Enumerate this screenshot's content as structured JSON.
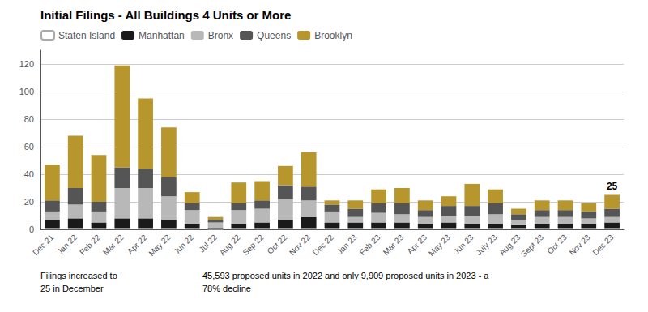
{
  "chart_data": {
    "type": "bar",
    "stacked": true,
    "title": "Initial Filings - All Buildings 4 Units or More",
    "categories": [
      "Dec 21",
      "Jan 22",
      "Feb 22",
      "Mar 22",
      "Apr 22",
      "May 22",
      "Jun 22",
      "Jul 22",
      "Aug 22",
      "Sep 22",
      "Oct 22",
      "Nov 22",
      "Dec 22",
      "Jan 23",
      "Feb 23",
      "Mar 23",
      "Apr 23",
      "May 23",
      "Jun 23",
      "July 23",
      "Aug 23",
      "Sept 23",
      "Oct 23",
      "Nov 23",
      "Dec 23"
    ],
    "series": [
      {
        "name": "Staten Island",
        "color": "#FFFFFF",
        "values": [
          1,
          1,
          1,
          1,
          1,
          1,
          1,
          0,
          1,
          1,
          1,
          1,
          1,
          1,
          1,
          1,
          1,
          1,
          1,
          1,
          1,
          1,
          1,
          1,
          1
        ]
      },
      {
        "name": "Manhattan",
        "color": "#1a1a1a",
        "values": [
          6,
          7,
          4,
          7,
          7,
          6,
          3,
          1,
          3,
          4,
          6,
          8,
          4,
          4,
          4,
          4,
          3,
          4,
          3,
          3,
          2,
          3,
          3,
          3,
          4
        ]
      },
      {
        "name": "Bronx",
        "color": "#b8b8b8",
        "values": [
          6,
          10,
          8,
          22,
          22,
          17,
          10,
          4,
          10,
          10,
          15,
          12,
          8,
          4,
          7,
          6,
          5,
          5,
          6,
          7,
          4,
          5,
          5,
          4,
          4
        ]
      },
      {
        "name": "Queens",
        "color": "#555555",
        "values": [
          8,
          12,
          7,
          15,
          14,
          14,
          5,
          2,
          5,
          6,
          10,
          10,
          5,
          6,
          7,
          8,
          5,
          7,
          7,
          8,
          4,
          5,
          5,
          5,
          6
        ]
      },
      {
        "name": "Brooklyn",
        "color": "#b8962e",
        "values": [
          26,
          38,
          34,
          74,
          51,
          36,
          8,
          2,
          15,
          14,
          14,
          25,
          3,
          6,
          10,
          11,
          7,
          7,
          16,
          10,
          4,
          7,
          7,
          6,
          10
        ]
      }
    ],
    "ylim": [
      0,
      130
    ],
    "yticks": [
      0,
      20,
      40,
      60,
      80,
      100,
      120
    ],
    "grid": true,
    "legend": "upper left",
    "annotations": [
      {
        "text": "25",
        "category": "Dec 23"
      },
      {
        "text": "Filings increased to\n25 in December"
      },
      {
        "text": "45,593 proposed units in 2022 and only 9,909 proposed units in 2023 - a\n78% decline"
      }
    ]
  }
}
